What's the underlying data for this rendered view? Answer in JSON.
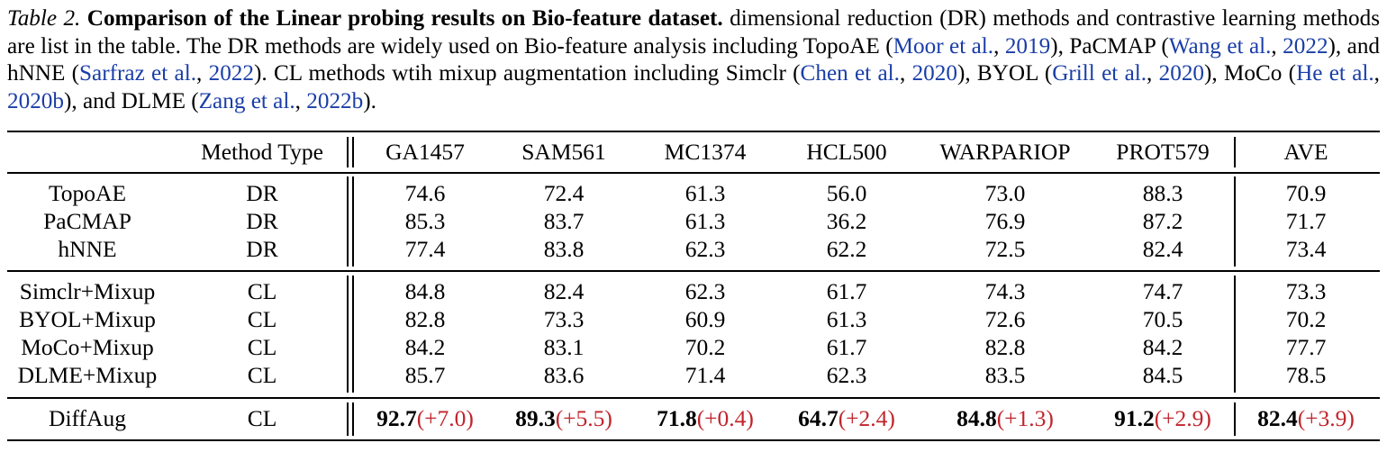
{
  "caption": {
    "label": "Table 2.",
    "title": "Comparison of the Linear probing results on Bio-feature dataset.",
    "segments": [
      {
        "t": " dimensional reduction (DR) methods and contrastive learning methods are list in the table. The DR methods are widely used on Bio-feature analysis including TopoAE ("
      },
      {
        "t": "Moor et al.",
        "cite": true
      },
      {
        "t": ", "
      },
      {
        "t": "2019",
        "cite": true
      },
      {
        "t": "), PaCMAP ("
      },
      {
        "t": "Wang et al.",
        "cite": true
      },
      {
        "t": ", "
      },
      {
        "t": "2022",
        "cite": true
      },
      {
        "t": "), and hNNE ("
      },
      {
        "t": "Sarfraz et al.",
        "cite": true
      },
      {
        "t": ", "
      },
      {
        "t": "2022",
        "cite": true
      },
      {
        "t": "). CL methods wtih mixup augmentation including Simclr ("
      },
      {
        "t": "Chen et al.",
        "cite": true
      },
      {
        "t": ", "
      },
      {
        "t": "2020",
        "cite": true
      },
      {
        "t": "), BYOL ("
      },
      {
        "t": "Grill et al.",
        "cite": true
      },
      {
        "t": ", "
      },
      {
        "t": "2020",
        "cite": true
      },
      {
        "t": "), MoCo ("
      },
      {
        "t": "He et al.",
        "cite": true
      },
      {
        "t": ", "
      },
      {
        "t": "2020b",
        "cite": true
      },
      {
        "t": "), and DLME ("
      },
      {
        "t": "Zang et al.",
        "cite": true
      },
      {
        "t": ", "
      },
      {
        "t": "2022b",
        "cite": true
      },
      {
        "t": ")."
      }
    ]
  },
  "table": {
    "header": [
      "",
      "Method Type",
      "GA1457",
      "SAM561",
      "MC1374",
      "HCL500",
      "WARPARIOP",
      "PROT579",
      "AVE"
    ],
    "groups": [
      [
        {
          "method": "TopoAE",
          "type": "DR",
          "values": [
            "74.6",
            "72.4",
            "61.3",
            "56.0",
            "73.0",
            "88.3",
            "70.9"
          ]
        },
        {
          "method": "PaCMAP",
          "type": "DR",
          "values": [
            "85.3",
            "83.7",
            "61.3",
            "36.2",
            "76.9",
            "87.2",
            "71.7"
          ]
        },
        {
          "method": "hNNE",
          "type": "DR",
          "values": [
            "77.4",
            "83.8",
            "62.3",
            "62.2",
            "72.5",
            "82.4",
            "73.4"
          ]
        }
      ],
      [
        {
          "method": "Simclr+Mixup",
          "type": "CL",
          "values": [
            "84.8",
            "82.4",
            "62.3",
            "61.7",
            "74.3",
            "74.7",
            "73.3"
          ]
        },
        {
          "method": "BYOL+Mixup",
          "type": "CL",
          "values": [
            "82.8",
            "73.3",
            "60.9",
            "61.3",
            "72.6",
            "70.5",
            "70.2"
          ]
        },
        {
          "method": "MoCo+Mixup",
          "type": "CL",
          "values": [
            "84.2",
            "83.1",
            "70.2",
            "61.7",
            "82.8",
            "84.2",
            "77.7"
          ]
        },
        {
          "method": "DLME+Mixup",
          "type": "CL",
          "values": [
            "85.7",
            "83.6",
            "71.4",
            "62.3",
            "83.5",
            "84.5",
            "78.5"
          ]
        }
      ]
    ],
    "ours": {
      "method": "DiffAug",
      "type": "CL",
      "values": [
        "92.7",
        "89.3",
        "71.8",
        "64.7",
        "84.8",
        "91.2",
        "82.4"
      ],
      "gains": [
        "(+7.0)",
        "(+5.5)",
        "(+0.4)",
        "(+2.4)",
        "(+1.3)",
        "(+2.9)",
        "(+3.9)"
      ]
    }
  }
}
